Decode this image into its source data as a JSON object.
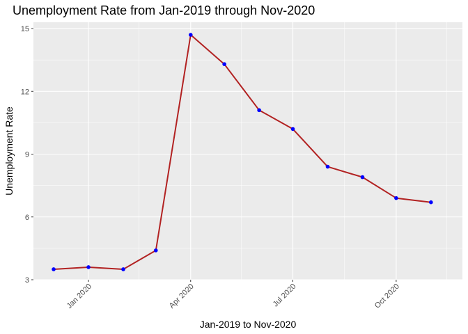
{
  "chart_data": {
    "type": "line",
    "title": "Unemployment Rate from Jan-2019 through Nov-2020",
    "xlabel": "Jan-2019 to Nov-2020",
    "ylabel": "Unemployment Rate",
    "x_ticks": [
      "Jan 2020",
      "Apr 2020",
      "Jul 2020",
      "Oct 2020"
    ],
    "y_ticks": [
      3,
      6,
      9,
      12,
      15
    ],
    "ylim": [
      3,
      15.3
    ],
    "xlim": [
      "2019-11-13",
      "2020-11-29"
    ],
    "grid": true,
    "series": [
      {
        "x": [
          "2019-12-01",
          "2020-01-01",
          "2020-02-01",
          "2020-03-01",
          "2020-04-01",
          "2020-05-01",
          "2020-06-01",
          "2020-07-01",
          "2020-08-01",
          "2020-09-01",
          "2020-10-01",
          "2020-11-01"
        ],
        "values": [
          3.5,
          3.6,
          3.5,
          4.4,
          14.7,
          13.3,
          11.1,
          10.2,
          8.4,
          7.9,
          6.9,
          6.7
        ]
      }
    ],
    "colors": {
      "panel_background": "#ebebeb",
      "grid_line": "#ffffff",
      "line": "#b22222",
      "point": "#0000ff"
    }
  }
}
